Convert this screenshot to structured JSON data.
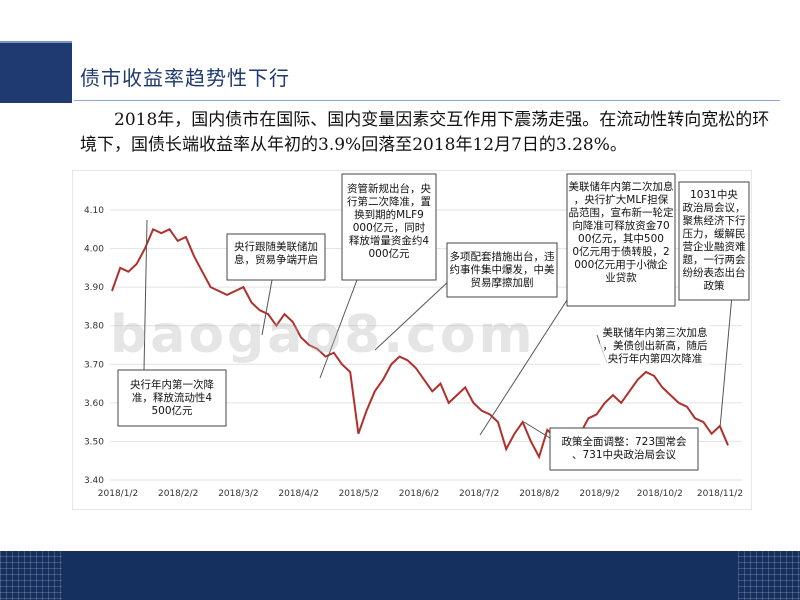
{
  "slide": {
    "title": "债市收益率趋势性下行",
    "description": "2018年，国内债市在国际、国内变量因素交互作用下震荡走强。在流动性转向宽松的环境下，国债长端收益率从年初的3.9%回落至2018年12月7日的3.28%。",
    "watermark": "baogao8.com"
  },
  "colors": {
    "line": "#b0312c",
    "accent": "#1f3a6e",
    "footer": "#15305f"
  },
  "chart_data": {
    "type": "line",
    "x_ticks": [
      "2018/1/2",
      "2018/2/2",
      "2018/3/2",
      "2018/4/2",
      "2018/5/2",
      "2018/6/2",
      "2018/7/2",
      "2018/8/2",
      "2018/9/2",
      "2018/10/2",
      "2018/11/2"
    ],
    "y_ticks": [
      "4.10",
      "4.00",
      "3.90",
      "3.80",
      "3.70",
      "3.60",
      "3.50",
      "3.40"
    ],
    "ylim": [
      3.4,
      4.1
    ],
    "grid": true,
    "series": [
      {
        "values": [
          3.89,
          3.95,
          3.94,
          3.96,
          4.0,
          4.05,
          4.04,
          4.05,
          4.02,
          4.03,
          3.98,
          3.94,
          3.9,
          3.89,
          3.88,
          3.89,
          3.9,
          3.86,
          3.84,
          3.83,
          3.8,
          3.83,
          3.81,
          3.77,
          3.75,
          3.74,
          3.72,
          3.73,
          3.7,
          3.68,
          3.52,
          3.58,
          3.63,
          3.66,
          3.7,
          3.72,
          3.71,
          3.69,
          3.66,
          3.63,
          3.65,
          3.6,
          3.62,
          3.64,
          3.6,
          3.58,
          3.57,
          3.55,
          3.48,
          3.52,
          3.55,
          3.5,
          3.46,
          3.53,
          3.51,
          3.48,
          3.46,
          3.52,
          3.56,
          3.57,
          3.6,
          3.62,
          3.6,
          3.63,
          3.66,
          3.68,
          3.67,
          3.64,
          3.62,
          3.6,
          3.59,
          3.56,
          3.55,
          3.52,
          3.54,
          3.49
        ]
      }
    ],
    "annotations": [
      {
        "text": "央行年内第一次降准，释放流动性4500亿元"
      },
      {
        "text": "央行跟随美联储加息，贸易争端开启"
      },
      {
        "text": "资管新规出台，央行第二次降准，置换到期的MLF9000亿元，同时释放增量资金约4000亿元"
      },
      {
        "text": "多项配套措施出台，违约事件集中爆发，中美贸易摩擦加剧"
      },
      {
        "text": "美联储年内第二次加息，央行扩大MLF担保品范围，宣布新一轮定向降准可释放资金7000亿元，其中5000亿元用于债转股，2000亿元用于小微企业贷款"
      },
      {
        "text": "1031中央政治局会议，聚焦经济下行压力，缓解民营企业融资难题，一行两会纷纷表态出台政策"
      },
      {
        "text": "美联储年内第三次加息，美债创出新高，随后央行年内第四次降准"
      },
      {
        "text": "政策全面调整：723国常会、731中央政治局会议"
      }
    ]
  }
}
